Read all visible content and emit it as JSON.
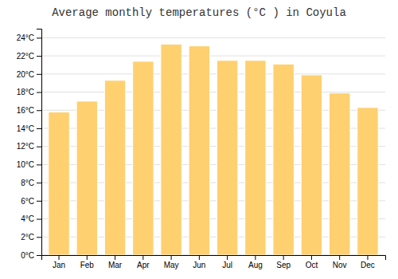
{
  "chart_data": {
    "type": "bar",
    "title": "Average monthly temperatures (°C ) in Coyula",
    "categories": [
      "Jan",
      "Feb",
      "Mar",
      "Apr",
      "May",
      "Jun",
      "Jul",
      "Aug",
      "Sep",
      "Oct",
      "Nov",
      "Dec"
    ],
    "values": [
      15.8,
      17.0,
      19.3,
      21.4,
      23.3,
      23.1,
      21.5,
      21.5,
      21.1,
      19.9,
      17.9,
      16.3
    ],
    "color": "#FFD070",
    "ylim": [
      0,
      25
    ],
    "yticks": [
      {
        "value": 0,
        "label": "0°C"
      },
      {
        "value": 2,
        "label": "2°C"
      },
      {
        "value": 4,
        "label": "4°C"
      },
      {
        "value": 6,
        "label": "6°C"
      },
      {
        "value": 8,
        "label": "8°C"
      },
      {
        "value": 10,
        "label": "10°C"
      },
      {
        "value": 12,
        "label": "12°C"
      },
      {
        "value": 14,
        "label": "14°C"
      },
      {
        "value": 16,
        "label": "16°C"
      },
      {
        "value": 18,
        "label": "18°C"
      },
      {
        "value": 20,
        "label": "20°C"
      },
      {
        "value": 22,
        "label": "22°C"
      },
      {
        "value": 24,
        "label": "24°C"
      }
    ],
    "grid": true
  }
}
